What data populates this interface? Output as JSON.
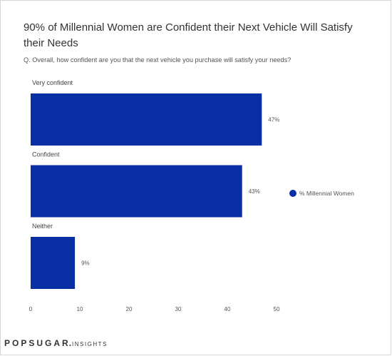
{
  "chart_data": {
    "type": "bar",
    "orientation": "horizontal",
    "title": "90% of Millennial Women are Confident their Next Vehicle Will Satisfy their Needs",
    "subtitle": "Q. Overall, how confident are you that the next vehicle you purchase will satisfy your needs?",
    "categories": [
      "Very confident",
      "Confident",
      "Neither"
    ],
    "series": [
      {
        "name": "% Millennial Women",
        "values": [
          47,
          43,
          9
        ],
        "labels": [
          "47%",
          "43%",
          "9%"
        ],
        "color": "#0a2ea4"
      }
    ],
    "xlim": [
      0,
      50
    ],
    "xticks": [
      "0",
      "10",
      "20",
      "30",
      "40",
      "50"
    ],
    "grid": false,
    "legend_position": "right"
  },
  "brand": {
    "main": "POPSUGAR",
    "dot": ".",
    "sub": "INSIGHTS"
  }
}
